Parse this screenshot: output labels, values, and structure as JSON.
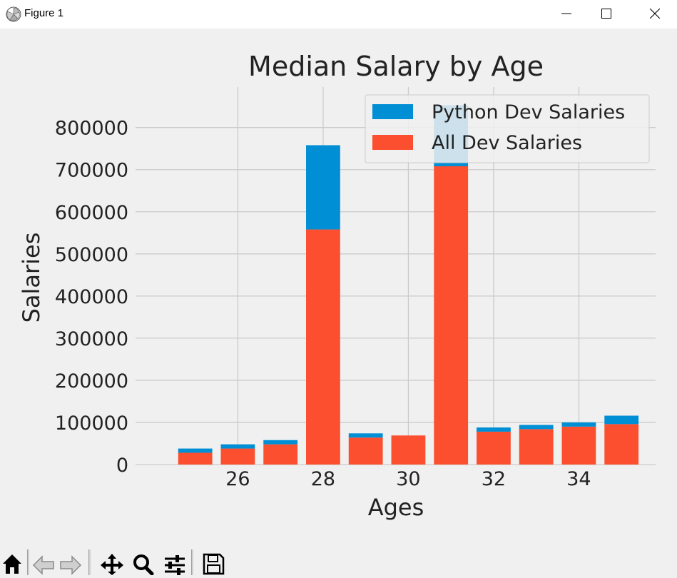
{
  "window": {
    "title": "Figure 1",
    "controls": [
      "minimize",
      "maximize",
      "close"
    ]
  },
  "toolbar": {
    "tools": [
      "home-icon",
      "back-arrow-icon",
      "forward-arrow-icon",
      "pan-move-icon",
      "zoom-magnifier-icon",
      "configure-subplots-icon",
      "save-disk-icon"
    ]
  },
  "chart_data": {
    "type": "bar",
    "stacked": true,
    "title": "Median Salary by Age",
    "xlabel": "Ages",
    "ylabel": "Salaries",
    "x": [
      25,
      26,
      27,
      28,
      29,
      30,
      31,
      32,
      33,
      34,
      35
    ],
    "x_ticks": [
      26,
      28,
      30,
      32,
      34
    ],
    "y_ticks": [
      0,
      100000,
      200000,
      300000,
      400000,
      500000,
      600000,
      700000,
      800000
    ],
    "xlim": [
      23.6,
      35.8
    ],
    "ylim": [
      0,
      896000
    ],
    "grid": true,
    "legend_position": "top-right",
    "series": [
      {
        "name": "All Dev Salaries",
        "color": "#fc4f30",
        "values": [
          28000,
          38000,
          48000,
          558000,
          64000,
          69000,
          708000,
          78000,
          84000,
          90000,
          96000
        ]
      },
      {
        "name": "Python Dev Salaries",
        "color": "#008fd5",
        "values": [
          10000,
          10000,
          10000,
          200000,
          10000,
          0,
          145000,
          10000,
          10000,
          10000,
          20000
        ]
      }
    ]
  }
}
